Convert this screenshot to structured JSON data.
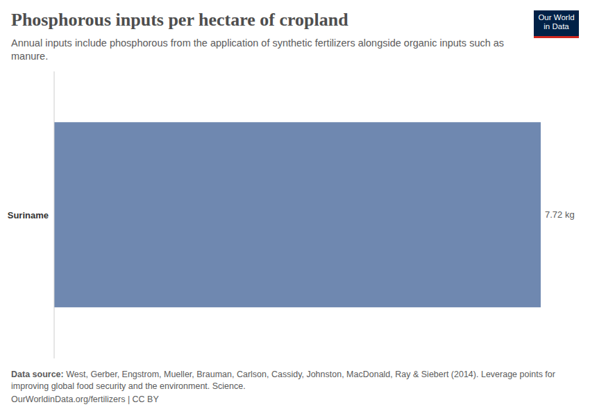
{
  "chart_data": {
    "type": "bar",
    "title": "Phosphorous inputs per hectare of cropland",
    "subtitle": "Annual inputs include phosphorous from the application of synthetic fertilizers alongside organic inputs such as manure.",
    "categories": [
      "Suriname"
    ],
    "values": [
      7.72
    ],
    "value_labels": [
      "7.72 kg"
    ],
    "color": "#6f88b0",
    "orientation": "horizontal",
    "data_labels": true,
    "tick_labels": "y",
    "grid": false,
    "xlim": [
      0,
      7.72
    ],
    "source_label": "Data source:",
    "source": "West, Gerber, Engstrom, Mueller, Brauman, Carlson, Cassidy, Johnston, MacDonald, Ray & Siebert (2014). Leverage points for improving global food security and the environment. Science.",
    "footer": "OurWorldinData.org/fertilizers | CC BY",
    "logo": [
      "Our World",
      "in Data"
    ]
  }
}
